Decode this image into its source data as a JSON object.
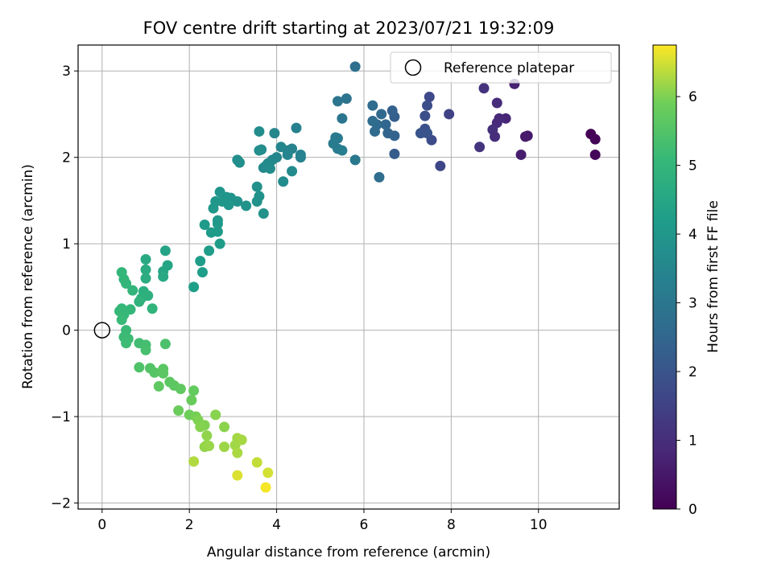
{
  "chart_data": {
    "type": "scatter",
    "title": "FOV centre drift starting at 2023/07/21 19:32:09",
    "xlabel": "Angular distance from reference (arcmin)",
    "ylabel": "Rotation from reference (arcmin)",
    "xlim": [
      -0.55,
      11.85
    ],
    "ylim": [
      -2.07,
      3.3
    ],
    "xticks": [
      0,
      2,
      4,
      6,
      8,
      10
    ],
    "yticks": [
      -2,
      -1,
      0,
      1,
      2,
      3
    ],
    "grid": true,
    "colorbar": {
      "label": "Hours from first FF file",
      "range": [
        0,
        6.75
      ],
      "ticks": [
        0,
        1,
        2,
        3,
        4,
        5,
        6
      ],
      "colormap": "viridis"
    },
    "legend": {
      "placement": "top-right",
      "entries": [
        "Reference platepar"
      ]
    },
    "reference_point": {
      "x": 0,
      "y": 0
    },
    "points": [
      {
        "x": 11.2,
        "y": 2.27,
        "t": 0.02
      },
      {
        "x": 11.3,
        "y": 2.21,
        "t": 0.06
      },
      {
        "x": 11.3,
        "y": 2.03,
        "t": 0.1
      },
      {
        "x": 9.75,
        "y": 2.25,
        "t": 0.5
      },
      {
        "x": 9.7,
        "y": 2.24,
        "t": 0.55
      },
      {
        "x": 9.6,
        "y": 2.03,
        "t": 0.6
      },
      {
        "x": 9.45,
        "y": 2.85,
        "t": 0.7
      },
      {
        "x": 9.25,
        "y": 2.45,
        "t": 0.8
      },
      {
        "x": 9.1,
        "y": 2.45,
        "t": 0.85
      },
      {
        "x": 9.05,
        "y": 2.4,
        "t": 0.9
      },
      {
        "x": 9.05,
        "y": 2.63,
        "t": 0.95
      },
      {
        "x": 9.0,
        "y": 2.24,
        "t": 1.0
      },
      {
        "x": 8.95,
        "y": 2.32,
        "t": 1.05
      },
      {
        "x": 8.75,
        "y": 2.8,
        "t": 1.1
      },
      {
        "x": 8.65,
        "y": 2.12,
        "t": 1.15
      },
      {
        "x": 7.95,
        "y": 2.5,
        "t": 1.5
      },
      {
        "x": 7.75,
        "y": 1.9,
        "t": 1.6
      },
      {
        "x": 7.5,
        "y": 2.7,
        "t": 1.7
      },
      {
        "x": 7.55,
        "y": 2.2,
        "t": 1.75
      },
      {
        "x": 7.45,
        "y": 2.6,
        "t": 1.8
      },
      {
        "x": 7.4,
        "y": 2.48,
        "t": 1.85
      },
      {
        "x": 7.4,
        "y": 2.33,
        "t": 1.9
      },
      {
        "x": 7.45,
        "y": 2.28,
        "t": 1.95
      },
      {
        "x": 7.3,
        "y": 2.28,
        "t": 2.0
      },
      {
        "x": 6.7,
        "y": 2.47,
        "t": 2.3
      },
      {
        "x": 6.65,
        "y": 2.54,
        "t": 2.35
      },
      {
        "x": 6.7,
        "y": 2.25,
        "t": 2.4
      },
      {
        "x": 6.55,
        "y": 2.28,
        "t": 2.45
      },
      {
        "x": 6.5,
        "y": 2.38,
        "t": 2.5
      },
      {
        "x": 6.4,
        "y": 2.5,
        "t": 2.55
      },
      {
        "x": 6.3,
        "y": 2.38,
        "t": 2.6
      },
      {
        "x": 6.25,
        "y": 2.3,
        "t": 2.62
      },
      {
        "x": 6.2,
        "y": 2.6,
        "t": 2.65
      },
      {
        "x": 6.2,
        "y": 2.42,
        "t": 2.68
      },
      {
        "x": 6.35,
        "y": 1.77,
        "t": 2.72
      },
      {
        "x": 6.7,
        "y": 2.04,
        "t": 2.2
      },
      {
        "x": 5.8,
        "y": 3.05,
        "t": 2.8
      },
      {
        "x": 5.6,
        "y": 2.68,
        "t": 2.9
      },
      {
        "x": 5.4,
        "y": 2.65,
        "t": 2.95
      },
      {
        "x": 5.5,
        "y": 2.45,
        "t": 3.0
      },
      {
        "x": 5.8,
        "y": 1.97,
        "t": 3.05
      },
      {
        "x": 5.35,
        "y": 2.23,
        "t": 3.1
      },
      {
        "x": 5.4,
        "y": 2.22,
        "t": 3.12
      },
      {
        "x": 5.3,
        "y": 2.16,
        "t": 3.15
      },
      {
        "x": 5.4,
        "y": 2.1,
        "t": 3.18
      },
      {
        "x": 5.5,
        "y": 2.08,
        "t": 3.2
      },
      {
        "x": 4.45,
        "y": 2.34,
        "t": 3.3
      },
      {
        "x": 4.55,
        "y": 2.0,
        "t": 3.35
      },
      {
        "x": 4.55,
        "y": 2.03,
        "t": 3.38
      },
      {
        "x": 4.35,
        "y": 2.1,
        "t": 3.4
      },
      {
        "x": 4.25,
        "y": 2.08,
        "t": 3.42
      },
      {
        "x": 4.25,
        "y": 2.03,
        "t": 3.45
      },
      {
        "x": 4.1,
        "y": 2.12,
        "t": 3.48
      },
      {
        "x": 4.0,
        "y": 2.0,
        "t": 3.5
      },
      {
        "x": 3.95,
        "y": 2.28,
        "t": 3.52
      },
      {
        "x": 3.9,
        "y": 1.97,
        "t": 3.55
      },
      {
        "x": 3.8,
        "y": 1.93,
        "t": 3.58
      },
      {
        "x": 3.7,
        "y": 1.88,
        "t": 3.6
      },
      {
        "x": 3.75,
        "y": 1.9,
        "t": 3.62
      },
      {
        "x": 3.85,
        "y": 1.87,
        "t": 3.64
      },
      {
        "x": 4.35,
        "y": 1.84,
        "t": 3.66
      },
      {
        "x": 4.15,
        "y": 1.72,
        "t": 3.68
      },
      {
        "x": 3.6,
        "y": 2.3,
        "t": 3.7
      },
      {
        "x": 3.65,
        "y": 2.09,
        "t": 3.72
      },
      {
        "x": 3.6,
        "y": 2.08,
        "t": 3.74
      },
      {
        "x": 3.1,
        "y": 1.97,
        "t": 3.76
      },
      {
        "x": 3.15,
        "y": 1.94,
        "t": 3.78
      },
      {
        "x": 3.55,
        "y": 1.66,
        "t": 3.8
      },
      {
        "x": 3.6,
        "y": 1.55,
        "t": 3.82
      },
      {
        "x": 3.55,
        "y": 1.49,
        "t": 3.84
      },
      {
        "x": 3.7,
        "y": 1.35,
        "t": 3.86
      },
      {
        "x": 3.3,
        "y": 1.44,
        "t": 3.88
      },
      {
        "x": 3.1,
        "y": 1.49,
        "t": 3.9
      },
      {
        "x": 2.95,
        "y": 1.53,
        "t": 3.92
      },
      {
        "x": 2.85,
        "y": 1.54,
        "t": 3.94
      },
      {
        "x": 2.7,
        "y": 1.6,
        "t": 3.96
      },
      {
        "x": 2.9,
        "y": 1.45,
        "t": 3.98
      },
      {
        "x": 2.75,
        "y": 1.49,
        "t": 4.0
      },
      {
        "x": 2.6,
        "y": 1.49,
        "t": 4.02
      },
      {
        "x": 2.55,
        "y": 1.41,
        "t": 4.04
      },
      {
        "x": 2.65,
        "y": 1.27,
        "t": 4.06
      },
      {
        "x": 2.65,
        "y": 1.23,
        "t": 4.08
      },
      {
        "x": 2.35,
        "y": 1.22,
        "t": 4.1
      },
      {
        "x": 2.5,
        "y": 1.13,
        "t": 4.12
      },
      {
        "x": 2.65,
        "y": 1.14,
        "t": 4.14
      },
      {
        "x": 2.7,
        "y": 1.0,
        "t": 4.16
      },
      {
        "x": 2.45,
        "y": 0.92,
        "t": 4.18
      },
      {
        "x": 2.25,
        "y": 0.8,
        "t": 4.2
      },
      {
        "x": 2.3,
        "y": 0.67,
        "t": 4.22
      },
      {
        "x": 2.1,
        "y": 0.5,
        "t": 4.25
      },
      {
        "x": 1.45,
        "y": 0.92,
        "t": 4.4
      },
      {
        "x": 1.5,
        "y": 0.75,
        "t": 4.45
      },
      {
        "x": 1.4,
        "y": 0.68,
        "t": 4.5
      },
      {
        "x": 1.4,
        "y": 0.62,
        "t": 4.55
      },
      {
        "x": 1.0,
        "y": 0.82,
        "t": 4.6
      },
      {
        "x": 1.0,
        "y": 0.7,
        "t": 4.65
      },
      {
        "x": 1.0,
        "y": 0.6,
        "t": 4.7
      },
      {
        "x": 0.95,
        "y": 0.45,
        "t": 4.75
      },
      {
        "x": 1.05,
        "y": 0.4,
        "t": 4.8
      },
      {
        "x": 0.9,
        "y": 0.37,
        "t": 4.85
      },
      {
        "x": 0.85,
        "y": 0.33,
        "t": 4.9
      },
      {
        "x": 1.15,
        "y": 0.25,
        "t": 4.92
      },
      {
        "x": 0.7,
        "y": 0.46,
        "t": 4.95
      },
      {
        "x": 0.55,
        "y": 0.54,
        "t": 4.98
      },
      {
        "x": 0.5,
        "y": 0.59,
        "t": 5.0
      },
      {
        "x": 0.45,
        "y": 0.67,
        "t": 5.02
      },
      {
        "x": 0.65,
        "y": 0.24,
        "t": 5.04
      },
      {
        "x": 0.45,
        "y": 0.25,
        "t": 5.06
      },
      {
        "x": 0.4,
        "y": 0.22,
        "t": 5.08
      },
      {
        "x": 0.5,
        "y": 0.18,
        "t": 5.1
      },
      {
        "x": 0.45,
        "y": 0.12,
        "t": 5.12
      },
      {
        "x": 0.55,
        "y": 0.0,
        "t": 5.14
      },
      {
        "x": 0.5,
        "y": -0.08,
        "t": 5.16
      },
      {
        "x": 0.6,
        "y": -0.1,
        "t": 5.18
      },
      {
        "x": 0.55,
        "y": -0.15,
        "t": 5.2
      },
      {
        "x": 0.85,
        "y": -0.15,
        "t": 5.25
      },
      {
        "x": 1.0,
        "y": -0.17,
        "t": 5.3
      },
      {
        "x": 1.0,
        "y": -0.23,
        "t": 5.35
      },
      {
        "x": 1.45,
        "y": -0.16,
        "t": 5.4
      },
      {
        "x": 0.85,
        "y": -0.43,
        "t": 5.45
      },
      {
        "x": 1.1,
        "y": -0.44,
        "t": 5.5
      },
      {
        "x": 1.2,
        "y": -0.49,
        "t": 5.55
      },
      {
        "x": 1.4,
        "y": -0.45,
        "t": 5.6
      },
      {
        "x": 1.4,
        "y": -0.5,
        "t": 5.62
      },
      {
        "x": 1.55,
        "y": -0.6,
        "t": 5.64
      },
      {
        "x": 1.65,
        "y": -0.64,
        "t": 5.66
      },
      {
        "x": 1.3,
        "y": -0.65,
        "t": 5.68
      },
      {
        "x": 1.8,
        "y": -0.68,
        "t": 5.7
      },
      {
        "x": 2.1,
        "y": -0.7,
        "t": 5.75
      },
      {
        "x": 2.05,
        "y": -0.81,
        "t": 5.8
      },
      {
        "x": 1.75,
        "y": -0.93,
        "t": 5.85
      },
      {
        "x": 2.0,
        "y": -0.98,
        "t": 5.9
      },
      {
        "x": 2.15,
        "y": -1.0,
        "t": 5.95
      },
      {
        "x": 2.2,
        "y": -1.04,
        "t": 6.0
      },
      {
        "x": 2.35,
        "y": -1.1,
        "t": 6.02
      },
      {
        "x": 2.25,
        "y": -1.12,
        "t": 6.04
      },
      {
        "x": 2.6,
        "y": -0.98,
        "t": 6.06
      },
      {
        "x": 2.8,
        "y": -1.12,
        "t": 6.08
      },
      {
        "x": 2.4,
        "y": -1.22,
        "t": 6.1
      },
      {
        "x": 2.35,
        "y": -1.35,
        "t": 6.12
      },
      {
        "x": 2.4,
        "y": -1.33,
        "t": 6.14
      },
      {
        "x": 2.45,
        "y": -1.34,
        "t": 6.16
      },
      {
        "x": 2.8,
        "y": -1.35,
        "t": 6.18
      },
      {
        "x": 3.05,
        "y": -1.33,
        "t": 6.2
      },
      {
        "x": 3.1,
        "y": -1.25,
        "t": 6.22
      },
      {
        "x": 3.2,
        "y": -1.27,
        "t": 6.24
      },
      {
        "x": 3.1,
        "y": -1.42,
        "t": 6.26
      },
      {
        "x": 2.1,
        "y": -1.52,
        "t": 6.3
      },
      {
        "x": 3.55,
        "y": -1.53,
        "t": 6.4
      },
      {
        "x": 3.8,
        "y": -1.65,
        "t": 6.5
      },
      {
        "x": 3.1,
        "y": -1.68,
        "t": 6.55
      },
      {
        "x": 3.75,
        "y": -1.82,
        "t": 6.7
      }
    ]
  }
}
